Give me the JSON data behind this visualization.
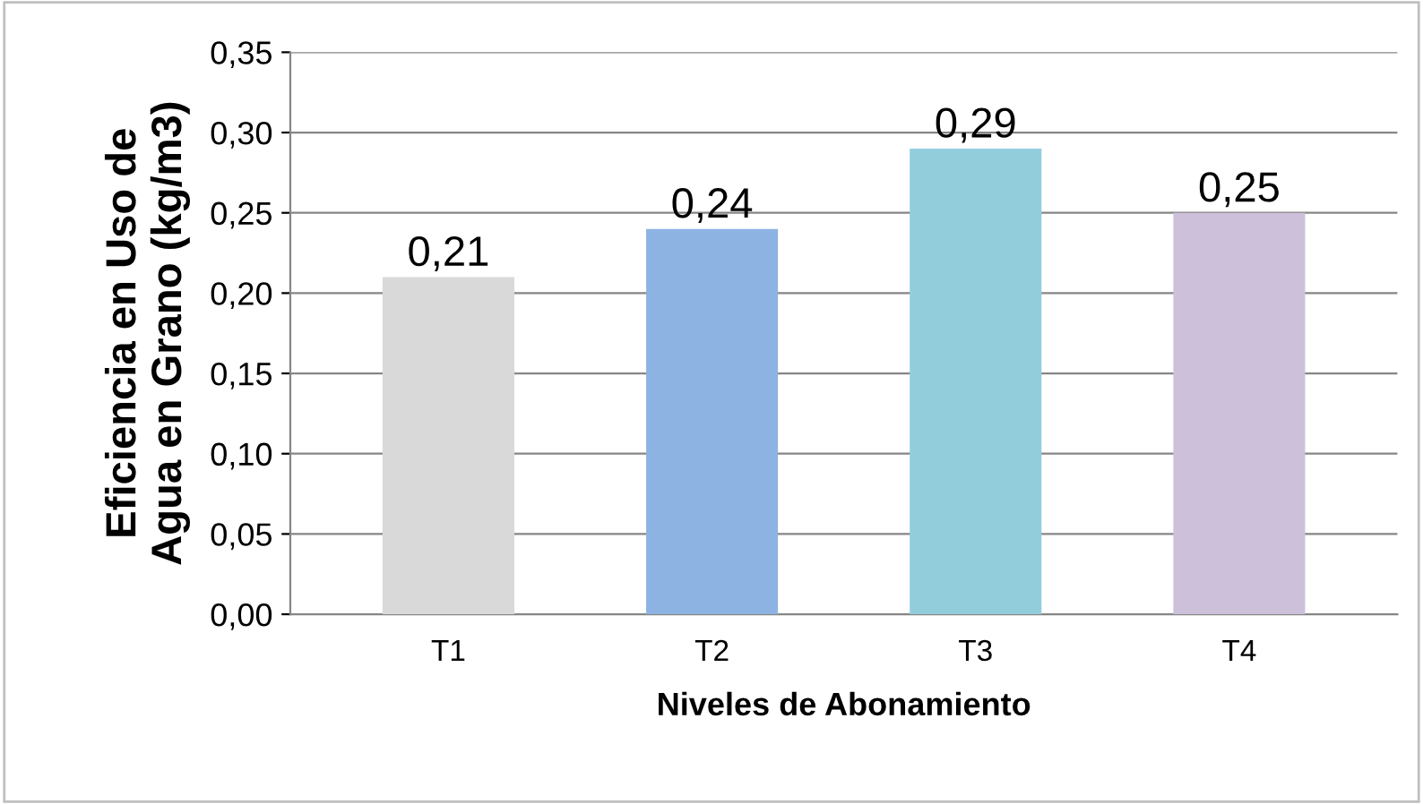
{
  "chart_data": {
    "type": "bar",
    "xlabel": "Niveles de Abonamiento",
    "ylabel": "Eficiencia en Uso de\nAgua en Grano (kg/m3)",
    "categories": [
      "T1",
      "T2",
      "T3",
      "T4"
    ],
    "values": [
      0.21,
      0.24,
      0.29,
      0.25
    ],
    "value_labels": [
      "0,21",
      "0,24",
      "0,29",
      "0,25"
    ],
    "colors": [
      "#d9d9d9",
      "#8db3e2",
      "#92cddc",
      "#ccc0da"
    ],
    "ylim": [
      0,
      0.35
    ],
    "yticks": [
      {
        "value": 0,
        "label": "0,00"
      },
      {
        "value": 0.05,
        "label": "0,05"
      },
      {
        "value": 0.1,
        "label": "0,10"
      },
      {
        "value": 0.15,
        "label": "0,15"
      },
      {
        "value": 0.2,
        "label": "0,20"
      },
      {
        "value": 0.25,
        "label": "0,25"
      },
      {
        "value": 0.3,
        "label": "0,30"
      },
      {
        "value": 0.35,
        "label": "0,35"
      }
    ],
    "grid": "y",
    "legend": false
  }
}
